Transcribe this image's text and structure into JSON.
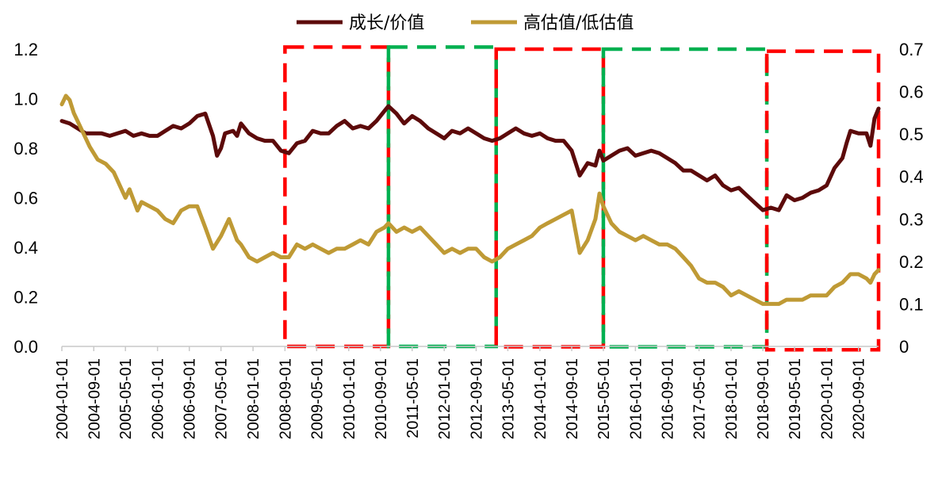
{
  "chart_data": {
    "type": "line",
    "legend": {
      "position": "top-center",
      "entries": [
        {
          "label": "成长/价值",
          "color": "#5c0a0a"
        },
        {
          "label": "高估值/低估值",
          "color": "#bf9a35"
        }
      ]
    },
    "grid": false,
    "x_axis": {
      "type": "date",
      "range": [
        "2004-01-01",
        "2021-02-01"
      ],
      "tick_labels": [
        "2004-01-01",
        "2004-09-01",
        "2005-05-01",
        "2006-01-01",
        "2006-09-01",
        "2007-05-01",
        "2008-01-01",
        "2008-09-01",
        "2009-05-01",
        "2010-01-01",
        "2010-09-01",
        "2011-05-01",
        "2012-01-01",
        "2012-09-01",
        "2013-05-01",
        "2014-01-01",
        "2014-09-01",
        "2015-05-01",
        "2016-01-01",
        "2016-09-01",
        "2017-05-01",
        "2018-01-01",
        "2018-09-01",
        "2019-05-01",
        "2020-01-01",
        "2020-09-01"
      ]
    },
    "y_left": {
      "min": 0.0,
      "max": 1.2,
      "tick_labels": [
        "0.0",
        "0.2",
        "0.4",
        "0.6",
        "0.8",
        "1.0",
        "1.2"
      ],
      "tick_values": [
        0,
        0.2,
        0.4,
        0.6,
        0.8,
        1.0,
        1.2
      ]
    },
    "y_right": {
      "min": 0,
      "max": 0.7,
      "tick_labels": [
        "0",
        "0.1",
        "0.2",
        "0.3",
        "0.4",
        "0.5",
        "0.6",
        "0.7"
      ],
      "tick_values": [
        0,
        0.1,
        0.2,
        0.3,
        0.4,
        0.5,
        0.6,
        0.7
      ]
    },
    "series": [
      {
        "name": "成长/价值",
        "axis": "left",
        "color": "#5c0a0a",
        "points": [
          [
            "2004-01-01",
            0.91
          ],
          [
            "2004-03-01",
            0.9
          ],
          [
            "2004-05-01",
            0.88
          ],
          [
            "2004-07-01",
            0.86
          ],
          [
            "2004-09-01",
            0.86
          ],
          [
            "2004-11-01",
            0.86
          ],
          [
            "2005-01-01",
            0.85
          ],
          [
            "2005-03-01",
            0.86
          ],
          [
            "2005-05-01",
            0.87
          ],
          [
            "2005-07-01",
            0.85
          ],
          [
            "2005-09-01",
            0.86
          ],
          [
            "2005-11-01",
            0.85
          ],
          [
            "2006-01-01",
            0.85
          ],
          [
            "2006-03-01",
            0.87
          ],
          [
            "2006-05-01",
            0.89
          ],
          [
            "2006-07-01",
            0.88
          ],
          [
            "2006-09-01",
            0.9
          ],
          [
            "2006-11-01",
            0.93
          ],
          [
            "2007-01-01",
            0.94
          ],
          [
            "2007-03-01",
            0.85
          ],
          [
            "2007-04-01",
            0.77
          ],
          [
            "2007-05-01",
            0.8
          ],
          [
            "2007-06-01",
            0.86
          ],
          [
            "2007-08-01",
            0.87
          ],
          [
            "2007-09-01",
            0.85
          ],
          [
            "2007-10-01",
            0.9
          ],
          [
            "2007-12-01",
            0.86
          ],
          [
            "2008-02-01",
            0.84
          ],
          [
            "2008-04-01",
            0.83
          ],
          [
            "2008-06-01",
            0.83
          ],
          [
            "2008-08-01",
            0.79
          ],
          [
            "2008-10-01",
            0.78
          ],
          [
            "2008-12-01",
            0.82
          ],
          [
            "2009-02-01",
            0.83
          ],
          [
            "2009-04-01",
            0.87
          ],
          [
            "2009-06-01",
            0.86
          ],
          [
            "2009-08-01",
            0.86
          ],
          [
            "2009-10-01",
            0.89
          ],
          [
            "2009-12-01",
            0.91
          ],
          [
            "2010-02-01",
            0.88
          ],
          [
            "2010-04-01",
            0.89
          ],
          [
            "2010-06-01",
            0.88
          ],
          [
            "2010-08-01",
            0.91
          ],
          [
            "2010-10-01",
            0.95
          ],
          [
            "2010-11-01",
            0.97
          ],
          [
            "2011-01-01",
            0.94
          ],
          [
            "2011-03-01",
            0.9
          ],
          [
            "2011-05-01",
            0.93
          ],
          [
            "2011-07-01",
            0.91
          ],
          [
            "2011-09-01",
            0.88
          ],
          [
            "2011-11-01",
            0.86
          ],
          [
            "2012-01-01",
            0.84
          ],
          [
            "2012-03-01",
            0.87
          ],
          [
            "2012-05-01",
            0.86
          ],
          [
            "2012-07-01",
            0.88
          ],
          [
            "2012-09-01",
            0.86
          ],
          [
            "2012-11-01",
            0.84
          ],
          [
            "2013-01-01",
            0.83
          ],
          [
            "2013-03-01",
            0.84
          ],
          [
            "2013-05-01",
            0.86
          ],
          [
            "2013-07-01",
            0.88
          ],
          [
            "2013-09-01",
            0.86
          ],
          [
            "2013-11-01",
            0.85
          ],
          [
            "2014-01-01",
            0.86
          ],
          [
            "2014-03-01",
            0.84
          ],
          [
            "2014-05-01",
            0.83
          ],
          [
            "2014-07-01",
            0.83
          ],
          [
            "2014-09-01",
            0.79
          ],
          [
            "2014-11-01",
            0.69
          ],
          [
            "2015-01-01",
            0.74
          ],
          [
            "2015-03-01",
            0.73
          ],
          [
            "2015-04-01",
            0.79
          ],
          [
            "2015-05-01",
            0.75
          ],
          [
            "2015-07-01",
            0.77
          ],
          [
            "2015-09-01",
            0.79
          ],
          [
            "2015-11-01",
            0.8
          ],
          [
            "2016-01-01",
            0.77
          ],
          [
            "2016-03-01",
            0.78
          ],
          [
            "2016-05-01",
            0.79
          ],
          [
            "2016-07-01",
            0.78
          ],
          [
            "2016-09-01",
            0.76
          ],
          [
            "2016-11-01",
            0.74
          ],
          [
            "2017-01-01",
            0.71
          ],
          [
            "2017-03-01",
            0.71
          ],
          [
            "2017-05-01",
            0.69
          ],
          [
            "2017-07-01",
            0.67
          ],
          [
            "2017-09-01",
            0.69
          ],
          [
            "2017-11-01",
            0.65
          ],
          [
            "2018-01-01",
            0.63
          ],
          [
            "2018-03-01",
            0.64
          ],
          [
            "2018-05-01",
            0.61
          ],
          [
            "2018-07-01",
            0.58
          ],
          [
            "2018-09-01",
            0.55
          ],
          [
            "2018-11-01",
            0.56
          ],
          [
            "2019-01-01",
            0.55
          ],
          [
            "2019-03-01",
            0.61
          ],
          [
            "2019-05-01",
            0.59
          ],
          [
            "2019-07-01",
            0.6
          ],
          [
            "2019-09-01",
            0.62
          ],
          [
            "2019-11-01",
            0.63
          ],
          [
            "2020-01-01",
            0.65
          ],
          [
            "2020-03-01",
            0.72
          ],
          [
            "2020-05-01",
            0.76
          ],
          [
            "2020-06-01",
            0.82
          ],
          [
            "2020-07-01",
            0.87
          ],
          [
            "2020-09-01",
            0.86
          ],
          [
            "2020-11-01",
            0.86
          ],
          [
            "2020-12-01",
            0.81
          ],
          [
            "2021-01-01",
            0.92
          ],
          [
            "2021-02-01",
            0.96
          ]
        ]
      },
      {
        "name": "高估值/低估值",
        "axis": "right",
        "color": "#bf9a35",
        "points": [
          [
            "2004-01-01",
            0.57
          ],
          [
            "2004-02-01",
            0.59
          ],
          [
            "2004-03-01",
            0.58
          ],
          [
            "2004-04-01",
            0.55
          ],
          [
            "2004-06-01",
            0.51
          ],
          [
            "2004-08-01",
            0.47
          ],
          [
            "2004-10-01",
            0.44
          ],
          [
            "2004-12-01",
            0.43
          ],
          [
            "2005-02-01",
            0.41
          ],
          [
            "2005-04-01",
            0.37
          ],
          [
            "2005-05-01",
            0.35
          ],
          [
            "2005-06-01",
            0.37
          ],
          [
            "2005-08-01",
            0.32
          ],
          [
            "2005-09-01",
            0.34
          ],
          [
            "2005-11-01",
            0.33
          ],
          [
            "2006-01-01",
            0.32
          ],
          [
            "2006-03-01",
            0.3
          ],
          [
            "2006-05-01",
            0.29
          ],
          [
            "2006-07-01",
            0.32
          ],
          [
            "2006-09-01",
            0.33
          ],
          [
            "2006-11-01",
            0.33
          ],
          [
            "2007-01-01",
            0.28
          ],
          [
            "2007-03-01",
            0.23
          ],
          [
            "2007-05-01",
            0.26
          ],
          [
            "2007-07-01",
            0.3
          ],
          [
            "2007-09-01",
            0.25
          ],
          [
            "2007-10-01",
            0.24
          ],
          [
            "2007-12-01",
            0.21
          ],
          [
            "2008-02-01",
            0.2
          ],
          [
            "2008-04-01",
            0.21
          ],
          [
            "2008-06-01",
            0.22
          ],
          [
            "2008-08-01",
            0.21
          ],
          [
            "2008-10-01",
            0.21
          ],
          [
            "2008-12-01",
            0.24
          ],
          [
            "2009-02-01",
            0.23
          ],
          [
            "2009-04-01",
            0.24
          ],
          [
            "2009-06-01",
            0.23
          ],
          [
            "2009-08-01",
            0.22
          ],
          [
            "2009-10-01",
            0.23
          ],
          [
            "2009-12-01",
            0.23
          ],
          [
            "2010-02-01",
            0.24
          ],
          [
            "2010-04-01",
            0.25
          ],
          [
            "2010-06-01",
            0.24
          ],
          [
            "2010-08-01",
            0.27
          ],
          [
            "2010-10-01",
            0.28
          ],
          [
            "2010-11-01",
            0.29
          ],
          [
            "2011-01-01",
            0.27
          ],
          [
            "2011-03-01",
            0.28
          ],
          [
            "2011-05-01",
            0.27
          ],
          [
            "2011-07-01",
            0.28
          ],
          [
            "2011-09-01",
            0.26
          ],
          [
            "2011-11-01",
            0.24
          ],
          [
            "2012-01-01",
            0.22
          ],
          [
            "2012-03-01",
            0.23
          ],
          [
            "2012-05-01",
            0.22
          ],
          [
            "2012-07-01",
            0.23
          ],
          [
            "2012-09-01",
            0.23
          ],
          [
            "2012-11-01",
            0.21
          ],
          [
            "2013-01-01",
            0.2
          ],
          [
            "2013-03-01",
            0.21
          ],
          [
            "2013-05-01",
            0.23
          ],
          [
            "2013-07-01",
            0.24
          ],
          [
            "2013-09-01",
            0.25
          ],
          [
            "2013-11-01",
            0.26
          ],
          [
            "2014-01-01",
            0.28
          ],
          [
            "2014-03-01",
            0.29
          ],
          [
            "2014-05-01",
            0.3
          ],
          [
            "2014-07-01",
            0.31
          ],
          [
            "2014-09-01",
            0.32
          ],
          [
            "2014-11-01",
            0.22
          ],
          [
            "2015-01-01",
            0.25
          ],
          [
            "2015-03-01",
            0.3
          ],
          [
            "2015-04-01",
            0.36
          ],
          [
            "2015-05-01",
            0.33
          ],
          [
            "2015-07-01",
            0.29
          ],
          [
            "2015-09-01",
            0.27
          ],
          [
            "2015-11-01",
            0.26
          ],
          [
            "2016-01-01",
            0.25
          ],
          [
            "2016-03-01",
            0.26
          ],
          [
            "2016-05-01",
            0.25
          ],
          [
            "2016-07-01",
            0.24
          ],
          [
            "2016-09-01",
            0.24
          ],
          [
            "2016-11-01",
            0.23
          ],
          [
            "2017-01-01",
            0.21
          ],
          [
            "2017-03-01",
            0.19
          ],
          [
            "2017-05-01",
            0.16
          ],
          [
            "2017-07-01",
            0.15
          ],
          [
            "2017-09-01",
            0.15
          ],
          [
            "2017-11-01",
            0.14
          ],
          [
            "2018-01-01",
            0.12
          ],
          [
            "2018-03-01",
            0.13
          ],
          [
            "2018-05-01",
            0.12
          ],
          [
            "2018-07-01",
            0.11
          ],
          [
            "2018-09-01",
            0.1
          ],
          [
            "2018-11-01",
            0.1
          ],
          [
            "2019-01-01",
            0.1
          ],
          [
            "2019-03-01",
            0.11
          ],
          [
            "2019-05-01",
            0.11
          ],
          [
            "2019-07-01",
            0.11
          ],
          [
            "2019-09-01",
            0.12
          ],
          [
            "2019-11-01",
            0.12
          ],
          [
            "2020-01-01",
            0.12
          ],
          [
            "2020-03-01",
            0.14
          ],
          [
            "2020-05-01",
            0.15
          ],
          [
            "2020-07-01",
            0.17
          ],
          [
            "2020-09-01",
            0.17
          ],
          [
            "2020-11-01",
            0.16
          ],
          [
            "2020-12-01",
            0.15
          ],
          [
            "2021-01-01",
            0.17
          ],
          [
            "2021-02-01",
            0.18
          ]
        ]
      }
    ],
    "annotations": [
      {
        "type": "dashed-box",
        "color": "#ff0000",
        "start": "2008-09-01",
        "end": "2010-11-01",
        "top": 0.705,
        "bottom": 0.0
      },
      {
        "type": "dashed-box",
        "color": "#00b050",
        "start": "2010-11-01",
        "end": "2013-02-01",
        "top": 0.705,
        "bottom": 0.0
      },
      {
        "type": "dashed-box",
        "color": "#ff0000",
        "start": "2013-02-01",
        "end": "2015-05-01",
        "top": 0.7,
        "bottom": -0.001
      },
      {
        "type": "dashed-box",
        "color": "#00b050",
        "start": "2015-05-01",
        "end": "2018-10-01",
        "top": 0.7,
        "bottom": -0.001
      },
      {
        "type": "dashed-box",
        "color": "#ff0000",
        "start": "2018-10-01",
        "end": "2021-02-01",
        "top": 0.695,
        "bottom": -0.008
      }
    ]
  }
}
